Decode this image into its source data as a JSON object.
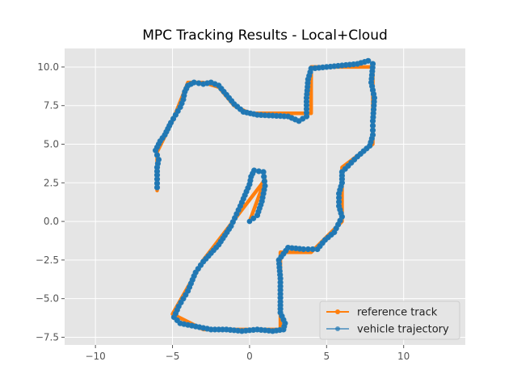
{
  "chart_data": {
    "type": "line",
    "title": "MPC Tracking Results - Local+Cloud",
    "xlabel": "",
    "ylabel": "",
    "xlim": [
      -12,
      14
    ],
    "ylim": [
      -8,
      11.2
    ],
    "x_ticks": [
      -10,
      -5,
      0,
      5,
      10
    ],
    "x_tick_labels": [
      "−10",
      "−5",
      "0",
      "5",
      "10"
    ],
    "y_ticks": [
      -7.5,
      -5.0,
      -2.5,
      0.0,
      2.5,
      5.0,
      7.5,
      10.0
    ],
    "y_tick_labels": [
      "−7.5",
      "−5.0",
      "−2.5",
      "0.0",
      "2.5",
      "5.0",
      "7.5",
      "10.0"
    ],
    "grid": true,
    "legend_position": "lower-right",
    "series": [
      {
        "name": "reference track",
        "color": "#ff7f0e",
        "points": [
          [
            -6,
            2
          ],
          [
            -6,
            4.5
          ],
          [
            -5,
            6.5
          ],
          [
            -4,
            9
          ],
          [
            -3,
            9
          ],
          [
            -2,
            8.7
          ],
          [
            -1,
            7.5
          ],
          [
            0,
            7
          ],
          [
            2,
            7
          ],
          [
            4,
            7
          ],
          [
            4,
            10
          ],
          [
            6,
            10
          ],
          [
            8,
            10
          ],
          [
            8,
            5
          ],
          [
            6,
            3.5
          ],
          [
            6,
            0
          ],
          [
            4,
            -2
          ],
          [
            2,
            -2
          ],
          [
            2,
            -7
          ],
          [
            0,
            -7
          ],
          [
            -3,
            -7
          ],
          [
            -5,
            -6
          ],
          [
            -3,
            -2.5
          ],
          [
            1,
            2.7
          ],
          [
            0,
            0
          ]
        ]
      },
      {
        "name": "vehicle trajectory",
        "color": "#1f77b4",
        "points": [
          [
            -6,
            2.2
          ],
          [
            -6,
            3
          ],
          [
            -6,
            3.5
          ],
          [
            -5.9,
            4.0
          ],
          [
            -6.1,
            4.6
          ],
          [
            -5.8,
            5.2
          ],
          [
            -5.5,
            5.6
          ],
          [
            -5.3,
            6.0
          ],
          [
            -5.1,
            6.4
          ],
          [
            -4.8,
            6.9
          ],
          [
            -4.5,
            7.4
          ],
          [
            -4.3,
            7.9
          ],
          [
            -4.2,
            8.4
          ],
          [
            -4.0,
            8.8
          ],
          [
            -3.6,
            9.0
          ],
          [
            -3.0,
            8.9
          ],
          [
            -2.5,
            9.0
          ],
          [
            -2.0,
            8.8
          ],
          [
            -1.5,
            8.2
          ],
          [
            -1.0,
            7.6
          ],
          [
            -0.4,
            7.1
          ],
          [
            0.5,
            6.9
          ],
          [
            1.5,
            6.85
          ],
          [
            2.5,
            6.8
          ],
          [
            3.2,
            6.5
          ],
          [
            3.7,
            6.8
          ],
          [
            3.7,
            8.0
          ],
          [
            3.8,
            9.2
          ],
          [
            4.0,
            9.9
          ],
          [
            5.0,
            10.0
          ],
          [
            6.0,
            10.1
          ],
          [
            7.0,
            10.2
          ],
          [
            7.7,
            10.4
          ],
          [
            8.0,
            10.2
          ],
          [
            7.9,
            9.0
          ],
          [
            8.1,
            8.0
          ],
          [
            8.0,
            6.5
          ],
          [
            8.0,
            5.6
          ],
          [
            7.8,
            4.9
          ],
          [
            7.0,
            4.2
          ],
          [
            6.4,
            3.6
          ],
          [
            6.0,
            3.2
          ],
          [
            6.0,
            2.5
          ],
          [
            5.8,
            1.8
          ],
          [
            5.8,
            1.0
          ],
          [
            6.0,
            0.3
          ],
          [
            5.5,
            -0.7
          ],
          [
            4.9,
            -1.2
          ],
          [
            4.4,
            -1.8
          ],
          [
            3.5,
            -1.8
          ],
          [
            2.5,
            -1.7
          ],
          [
            1.9,
            -2.5
          ],
          [
            2.0,
            -3.7
          ],
          [
            2.0,
            -5.2
          ],
          [
            2.0,
            -5.9
          ],
          [
            2.3,
            -6.6
          ],
          [
            2.2,
            -7.0
          ],
          [
            1.5,
            -7.1
          ],
          [
            0.5,
            -7.0
          ],
          [
            -0.5,
            -7.1
          ],
          [
            -1.5,
            -7.0
          ],
          [
            -2.5,
            -7.0
          ],
          [
            -3.5,
            -6.8
          ],
          [
            -4.5,
            -6.6
          ],
          [
            -4.9,
            -6.2
          ],
          [
            -4.6,
            -5.5
          ],
          [
            -4.0,
            -4.5
          ],
          [
            -3.5,
            -3.3
          ],
          [
            -3.0,
            -2.6
          ],
          [
            -2.0,
            -1.5
          ],
          [
            -1.2,
            -0.3
          ],
          [
            -0.6,
            1.0
          ],
          [
            0.0,
            2.4
          ],
          [
            0.1,
            2.9
          ],
          [
            0.3,
            3.3
          ],
          [
            0.9,
            3.2
          ],
          [
            1.0,
            2.3
          ],
          [
            0.8,
            1.3
          ],
          [
            0.5,
            0.4
          ],
          [
            0.0,
            0.0
          ]
        ]
      }
    ]
  }
}
